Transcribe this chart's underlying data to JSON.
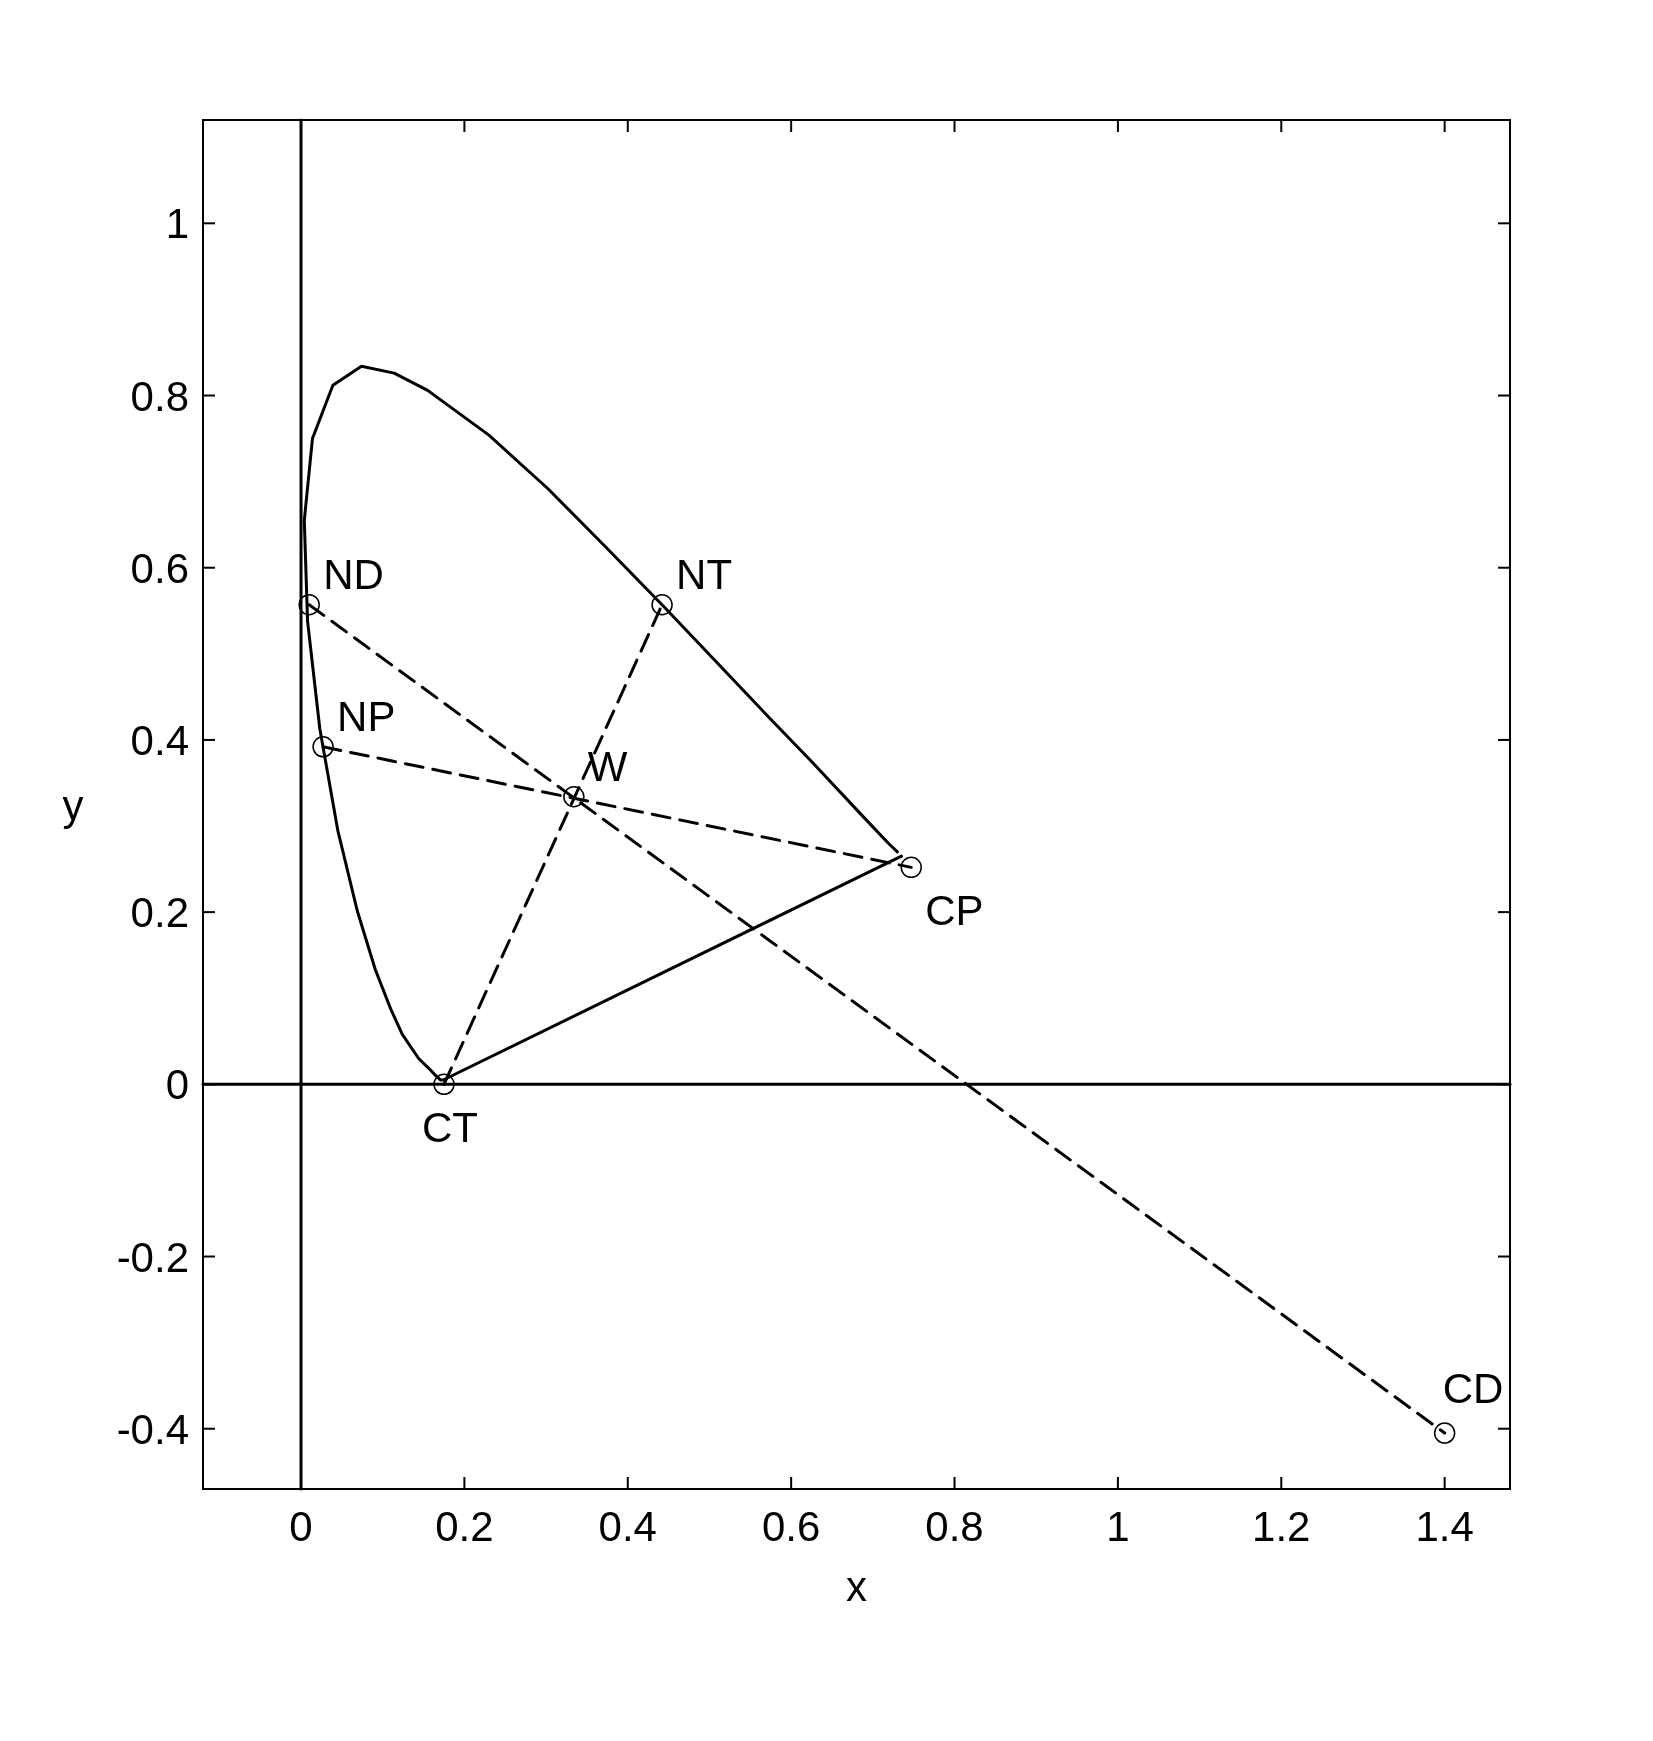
{
  "chart_data": {
    "type": "line",
    "xlabel": "x",
    "ylabel": "y",
    "xlim": [
      -0.12,
      1.48
    ],
    "ylim": [
      -0.47,
      1.12
    ],
    "xticks": [
      0,
      0.2,
      0.4,
      0.6,
      0.8,
      1,
      1.2,
      1.4
    ],
    "yticks": [
      -0.4,
      -0.2,
      0,
      0.2,
      0.4,
      0.6,
      0.8,
      1
    ],
    "grid": false,
    "series": [
      {
        "type": "line",
        "color": "#000000",
        "line_style": "solid",
        "x": [
          0,
          0
        ],
        "values": [
          -0.47,
          1.12
        ]
      },
      {
        "type": "line",
        "color": "#000000",
        "line_style": "solid",
        "x": [
          -0.12,
          1.48
        ],
        "values": [
          0,
          0
        ]
      },
      {
        "type": "line",
        "color": "#000000",
        "line_style": "solid",
        "x": [
          0.735,
          0.174,
          0.171,
          0.164,
          0.157,
          0.144,
          0.124,
          0.11,
          0.091,
          0.069,
          0.045,
          0.023,
          0.008,
          0.004,
          0.014,
          0.039,
          0.074,
          0.114,
          0.155,
          0.23,
          0.302,
          0.373,
          0.444,
          0.512,
          0.575,
          0.627,
          0.691,
          0.719,
          0.73
        ],
        "values": [
          0.265,
          0.005,
          0.005,
          0.011,
          0.018,
          0.03,
          0.058,
          0.087,
          0.133,
          0.201,
          0.295,
          0.413,
          0.538,
          0.655,
          0.75,
          0.812,
          0.834,
          0.826,
          0.806,
          0.754,
          0.692,
          0.624,
          0.555,
          0.487,
          0.424,
          0.373,
          0.308,
          0.28,
          0.27
        ]
      },
      {
        "color": "#000000",
        "line_style": "dashed",
        "x": [
          0.01,
          1.4
        ],
        "values": [
          0.557,
          -0.405
        ]
      },
      {
        "color": "#000000",
        "line_style": "dashed",
        "x": [
          0.027,
          0.747
        ],
        "values": [
          0.392,
          0.252
        ]
      },
      {
        "color": "#000000",
        "line_style": "dashed",
        "x": [
          0.175,
          0.442
        ],
        "values": [
          0.0,
          0.557
        ]
      },
      {
        "type": "scatter",
        "color": "#000000",
        "marker": "circle",
        "x": [
          0.01,
          0.027,
          0.334,
          0.442,
          0.747,
          0.175,
          1.4
        ],
        "values": [
          0.557,
          0.392,
          0.334,
          0.557,
          0.252,
          0.0,
          -0.405
        ]
      }
    ],
    "annotations": [
      {
        "text": "ND",
        "x": 0.01,
        "y": 0.557
      },
      {
        "text": "NP",
        "x": 0.027,
        "y": 0.392
      },
      {
        "text": "W",
        "x": 0.334,
        "y": 0.334
      },
      {
        "text": "NT",
        "x": 0.442,
        "y": 0.557
      },
      {
        "text": "CP",
        "x": 0.747,
        "y": 0.252
      },
      {
        "text": "CT",
        "x": 0.175,
        "y": 0.0
      },
      {
        "text": "CD",
        "x": 1.4,
        "y": -0.405
      }
    ]
  }
}
